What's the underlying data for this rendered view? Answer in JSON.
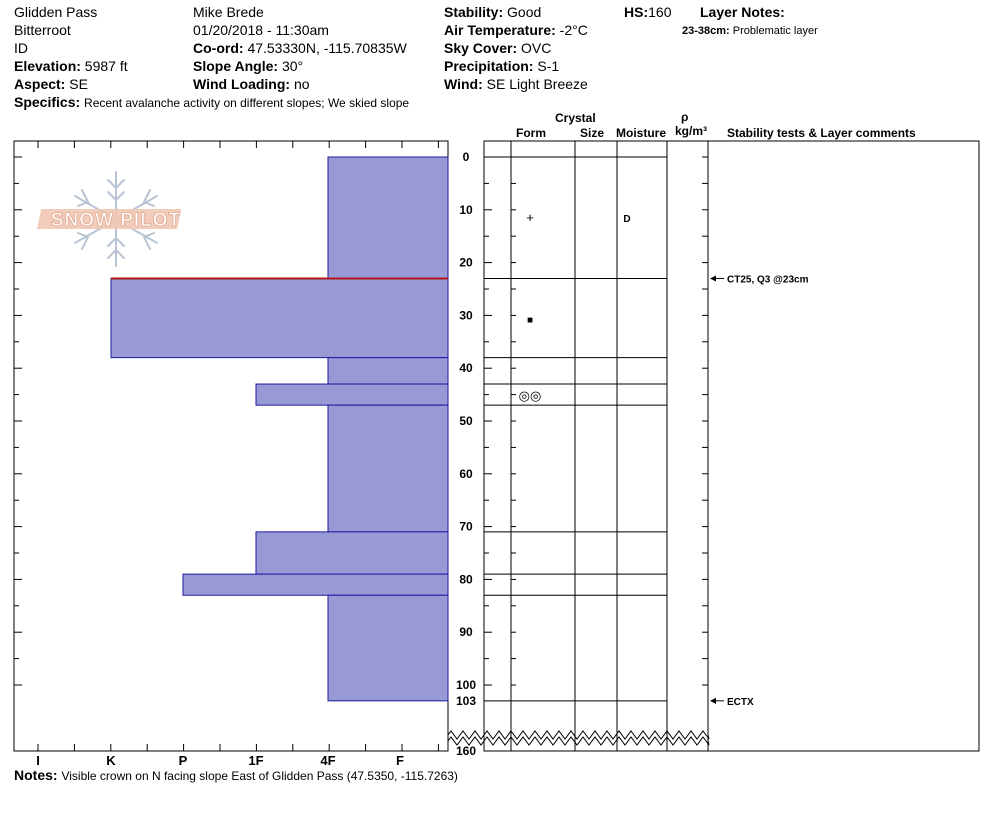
{
  "header": {
    "location": "Glidden Pass",
    "range": "Bitterroot",
    "state": "ID",
    "elevation_label": "Elevation:",
    "elevation_value": "5987 ft",
    "aspect_label": "Aspect:",
    "aspect_value": "SE",
    "specifics_label": "Specifics:",
    "specifics_value": "Recent avalanche activity on different slopes;  We skied slope",
    "observer": "Mike Brede",
    "datetime": "01/20/2018 - 11:30am",
    "coord_label": "Co-ord:",
    "coord_value": "47.53330N, -115.70835W",
    "slope_label": "Slope Angle:",
    "slope_value": "30°",
    "wind_loading_label": "Wind Loading:",
    "wind_loading_value": "no",
    "stability_label": "Stability:",
    "stability_value": "Good",
    "air_temp_label": "Air Temperature:",
    "air_temp_value": "-2°C",
    "sky_label": "Sky Cover:",
    "sky_value": "OVC",
    "precip_label": "Precipitation:",
    "precip_value": "S-1",
    "wind_label": "Wind:",
    "wind_value": "SE  Light Breeze",
    "hs_label": "HS:",
    "hs_value": "160",
    "layer_notes_label": "Layer Notes:",
    "layer_note_range": "23-38cm:",
    "layer_note_text": "Problematic layer"
  },
  "logo": {
    "text": "SNOW PILOT"
  },
  "columns": {
    "crystal": "Crystal",
    "form": "Form",
    "size": "Size",
    "moisture": "Moisture",
    "rho": "ρ",
    "density_unit": "kg/m³",
    "comments": "Stability tests & Layer comments"
  },
  "notes": {
    "label": "Notes:",
    "text": "Visible crown on N facing slope East of Glidden Pass (47.5350, -115.7263)"
  },
  "chart_data": {
    "type": "bar",
    "orientation": "horizontal",
    "hardness_scale": [
      "I",
      "K",
      "P",
      "1F",
      "4F",
      "F"
    ],
    "depth_ticks": [
      "0",
      "10",
      "20",
      "30",
      "40",
      "50",
      "60",
      "70",
      "80",
      "90",
      "100",
      "103",
      "160"
    ],
    "depth_range_cm": [
      0,
      160
    ],
    "layers": [
      {
        "top": 0,
        "bottom": 23,
        "hardness": "4F",
        "form": "+",
        "moisture": "D"
      },
      {
        "top": 23,
        "bottom": 38,
        "hardness": "K",
        "form": "■",
        "moisture": ""
      },
      {
        "top": 38,
        "bottom": 43,
        "hardness": "4F",
        "form": "",
        "moisture": ""
      },
      {
        "top": 43,
        "bottom": 47,
        "hardness": "1F",
        "form": "◎◎",
        "moisture": ""
      },
      {
        "top": 47,
        "bottom": 71,
        "hardness": "4F",
        "form": "",
        "moisture": ""
      },
      {
        "top": 71,
        "bottom": 79,
        "hardness": "1F",
        "form": "",
        "moisture": ""
      },
      {
        "top": 79,
        "bottom": 83,
        "hardness": "P",
        "form": "",
        "moisture": ""
      },
      {
        "top": 83,
        "bottom": 103,
        "hardness": "4F",
        "form": "",
        "moisture": ""
      }
    ],
    "tests": [
      {
        "depth": 23,
        "text": "CT25, Q3 @23cm"
      },
      {
        "depth": 103,
        "text": "ECTX"
      }
    ],
    "colors": {
      "fill": "#9999d6",
      "stroke": "#1a1aa0",
      "weak_layer": "#b01818"
    }
  }
}
